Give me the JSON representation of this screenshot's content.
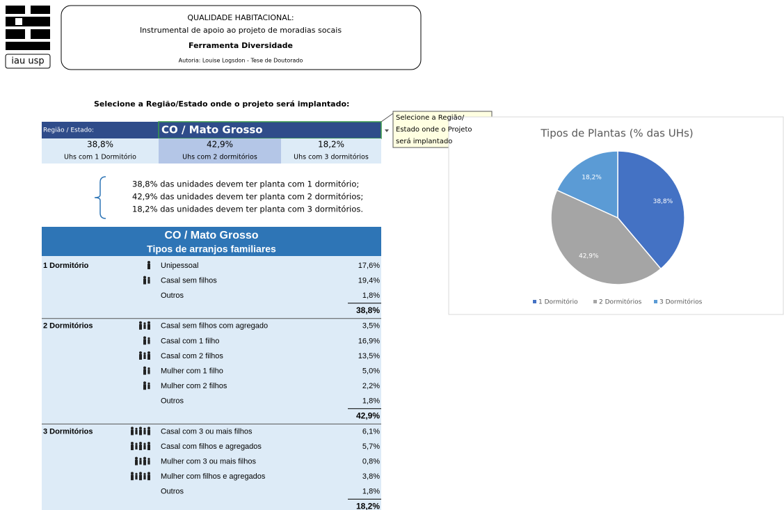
{
  "logo": {
    "text": "iau usp"
  },
  "header": {
    "title": "QUALIDADE HABITACIONAL:",
    "subtitle": "Instrumental de apoio ao projeto de moradias socais",
    "tool": "Ferramenta Diversidade",
    "author": "Autoria: Louise Logsdon - Tese de Doutorado"
  },
  "prompt": "Selecione a Região/Estado onde o projeto será implantado:",
  "selector": {
    "label": "Região / Estado:",
    "value": "CO / Mato Grosso",
    "tooltip": [
      "Selecione a Região/",
      "Estado onde o Projeto",
      "será implantado"
    ]
  },
  "summary": {
    "percents": [
      "38,8%",
      "42,9%",
      "18,2%"
    ],
    "labels": [
      "Uhs com 1 Dormitório",
      "Uhs com 2 dormitórios",
      "Uhs com 3 dormitórios"
    ]
  },
  "notes": [
    "38,8% das unidades devem ter planta com 1 dormitório;",
    "42,9% das unidades devem ter planta com 2 dormitórios;",
    "18,2% das unidades devem ter planta com 3 dormitórios."
  ],
  "table": {
    "title": "CO / Mato Grosso",
    "subtitle": "Tipos de arranjos familiares",
    "sections": [
      {
        "name": "1 Dormitório",
        "rows": [
          [
            "Unipessoal",
            "17,6%"
          ],
          [
            "Casal sem filhos",
            "19,4%"
          ],
          [
            "Outros",
            "1,8%"
          ]
        ],
        "total": "38,8%"
      },
      {
        "name": "2 Dormitórios",
        "rows": [
          [
            "Casal sem filhos com agregado",
            "3,5%"
          ],
          [
            "Casal com 1 filho",
            "16,9%"
          ],
          [
            "Casal com 2 filhos",
            "13,5%"
          ],
          [
            "Mulher com 1 filho",
            "5,0%"
          ],
          [
            "Mulher com 2 filhos",
            "2,2%"
          ],
          [
            "Outros",
            "1,8%"
          ]
        ],
        "total": "42,9%"
      },
      {
        "name": "3 Dormitórios",
        "rows": [
          [
            "Casal com 3 ou mais filhos",
            "6,1%"
          ],
          [
            "Casal com filhos e  agregados",
            "5,7%"
          ],
          [
            "Mulher com 3 ou mais filhos",
            "0,8%"
          ],
          [
            "Mulher com filhos e  agregados",
            "3,8%"
          ],
          [
            "Outros",
            "1,8%"
          ]
        ],
        "total": "18,2%"
      }
    ]
  },
  "chart_data": {
    "type": "pie",
    "title": "Tipos de Plantas (% das UHs)",
    "categories": [
      "1 Dormitório",
      "2 Dormitórios",
      "3 Dormitórios"
    ],
    "values": [
      38.8,
      42.9,
      18.2
    ],
    "value_labels": [
      "38,8%",
      "42,9%",
      "18,2%"
    ],
    "colors": [
      "#4472c4",
      "#a5a5a5",
      "#5b9bd5"
    ]
  }
}
